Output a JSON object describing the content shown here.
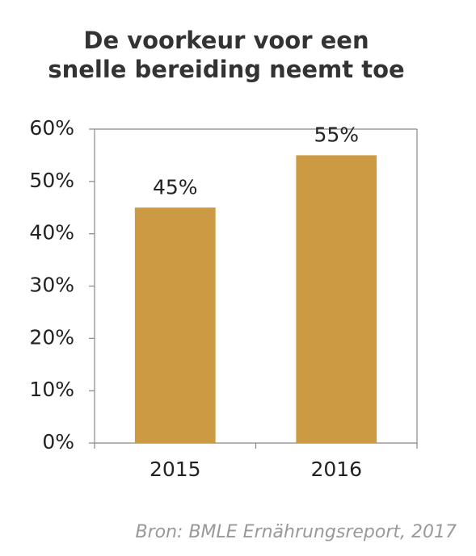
{
  "chart_data": {
    "type": "bar",
    "title": [
      "De voorkeur voor een",
      "snelle bereiding neemt toe"
    ],
    "categories": [
      "2015",
      "2016"
    ],
    "values": [
      45,
      55
    ],
    "value_labels": [
      "45%",
      "55%"
    ],
    "color": "#cc9a42",
    "ylim": [
      0,
      60
    ],
    "yticks": [
      {
        "value": 0,
        "label": "0%"
      },
      {
        "value": 10,
        "label": "10%"
      },
      {
        "value": 20,
        "label": "20%"
      },
      {
        "value": 30,
        "label": "30%"
      },
      {
        "value": 40,
        "label": "40%"
      },
      {
        "value": 50,
        "label": "50%"
      },
      {
        "value": 60,
        "label": "60%"
      }
    ],
    "source": "Bron: BMLE Ernährungsreport, 2017"
  }
}
